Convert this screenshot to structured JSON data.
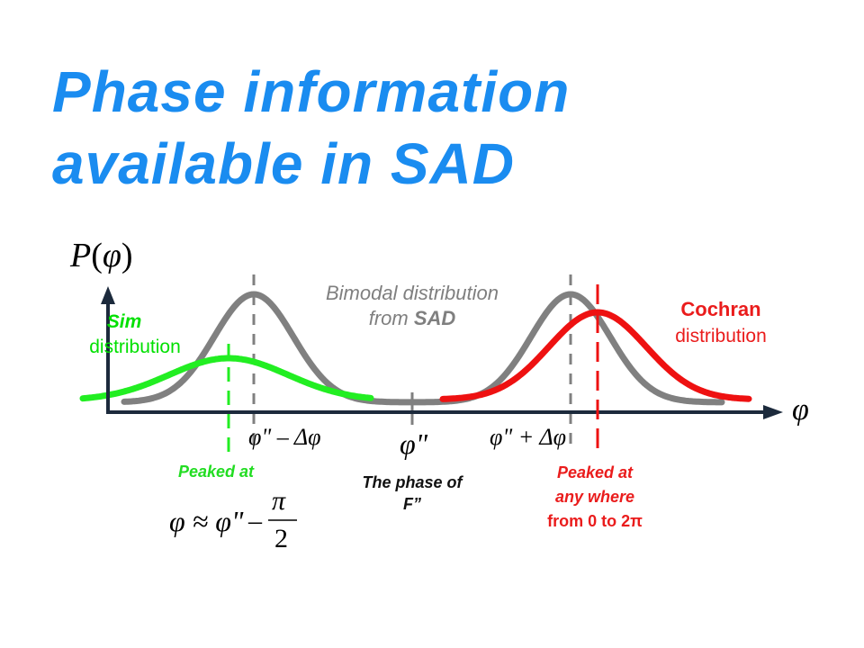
{
  "title": {
    "line1": "Phase information",
    "line2": "available in SAD"
  },
  "colors": {
    "title": "#1a8cf0",
    "bimodal": "#808080",
    "sim": "#22ee22",
    "cochran": "#ee1111",
    "axis": "#1c2a3c"
  },
  "axes": {
    "y_label_prefix": "P",
    "y_label_var": "φ",
    "x_label": "φ"
  },
  "bimodal": {
    "line1": "Bimodal distribution",
    "line2_prefix": "from ",
    "line2_bold": "SAD"
  },
  "sim": {
    "name": "Sim",
    "word": "distribution",
    "peaked": "Peaked at",
    "formula_lhs": "φ ≈ φ\"",
    "formula_minus": "–",
    "formula_num": "π",
    "formula_den": "2"
  },
  "cochran": {
    "name": "Cochran",
    "word": "distribution",
    "peaked_line1": "Peaked at",
    "peaked_line2": "any where",
    "peaked_line3": "from 0 to 2π"
  },
  "ticks": {
    "left": "φ\" – Δφ",
    "center": "φ\"",
    "right": "φ\" + Δφ"
  },
  "center_note": {
    "line1": "The phase of",
    "line2": "F”"
  }
}
